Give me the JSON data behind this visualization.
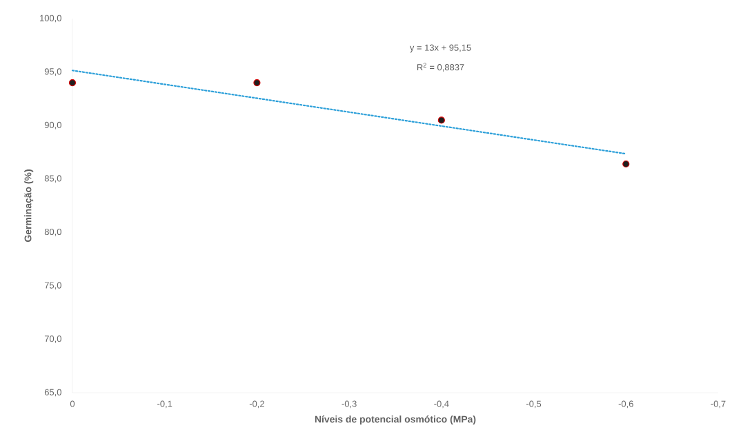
{
  "chart_data": {
    "type": "scatter",
    "xlabel": "Níveis de potencial osmótico (MPa)",
    "ylabel": "Germinação (%)",
    "annotations": [
      "y = 13x + 95,15",
      "R$^{2}$ = 0,8837"
    ],
    "series": [
      {
        "x": [
          0,
          -0.2,
          -0.4,
          -0.6
        ],
        "values": [
          94.0,
          94.0,
          90.5,
          86.4
        ],
        "color": "#1f1f1f",
        "marker": "circle"
      },
      {
        "type": "line",
        "x": [
          0,
          -0.6
        ],
        "values": [
          95.15,
          87.35
        ],
        "color": "#2b9fd9",
        "line_style": "dotted",
        "marker": "none"
      }
    ],
    "xlim": [
      0,
      -0.7
    ],
    "ylim": [
      65,
      100
    ],
    "xticks": [
      0,
      {
        "value": -0.1,
        "label": "-0,1"
      },
      {
        "value": -0.2,
        "label": "-0,2"
      },
      {
        "value": -0.3,
        "label": "-0,3"
      },
      {
        "value": -0.4,
        "label": "-0,4"
      },
      {
        "value": -0.5,
        "label": "-0,5"
      },
      {
        "value": -0.6,
        "label": "-0,6"
      },
      {
        "value": -0.7,
        "label": "-0,7"
      }
    ],
    "yticks": [
      {
        "value": 65,
        "label": "65,0"
      },
      {
        "value": 70,
        "label": "70,0"
      },
      {
        "value": 75,
        "label": "75,0"
      },
      {
        "value": 80,
        "label": "80,0"
      },
      {
        "value": 85,
        "label": "85,0"
      },
      {
        "value": 90,
        "label": "90,0"
      },
      {
        "value": 95,
        "label": "95,0"
      },
      {
        "value": 100,
        "label": "100,0"
      }
    ],
    "grid": false
  }
}
